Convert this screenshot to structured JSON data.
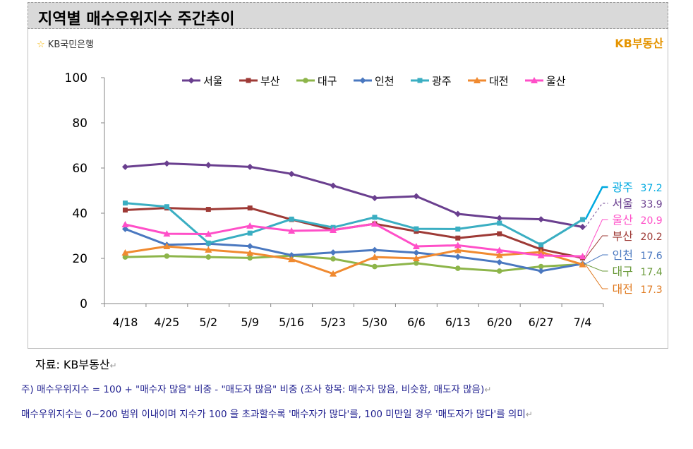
{
  "header": {
    "title": "지역별 매수우위지수 주간추이"
  },
  "logos": {
    "left_brand": "KB국민은행",
    "left_symbol": "☆",
    "right_brand": "KB부동산"
  },
  "footer": {
    "source": "자료: KB부동산",
    "note1": "주) 매수우위지수 = 100 + \"매수자 많음\" 비중 - \"매도자 많음\" 비중  (조사 항목: 매수자 많음, 비슷함, 매도자 많음)",
    "note2": "매수우위지수는 0~200 범위 이내이며 지수가 100 을 초과할수록 '매수자가 많다'를, 100 미만일 경우 '매도자가 많다'를 의미"
  },
  "chart_data": {
    "type": "line",
    "title": "지역별 매수우위지수 주간추이",
    "xlabel": "",
    "ylabel": "",
    "categories": [
      "4/18",
      "4/25",
      "5/2",
      "5/9",
      "5/16",
      "5/23",
      "5/30",
      "6/6",
      "6/13",
      "6/20",
      "6/27",
      "7/4"
    ],
    "ylim": [
      0,
      100
    ],
    "yticks": [
      0,
      20,
      40,
      60,
      80,
      100
    ],
    "legend_position": "top",
    "grid": false,
    "series": [
      {
        "name": "서울",
        "color": "#6a3f8f",
        "marker": "diamond",
        "values": [
          60.5,
          62.0,
          61.3,
          60.5,
          57.4,
          52.2,
          46.7,
          47.5,
          39.7,
          37.8,
          37.3,
          33.9
        ]
      },
      {
        "name": "부산",
        "color": "#9e3a36",
        "marker": "square",
        "values": [
          41.4,
          42.3,
          41.7,
          42.3,
          37.2,
          32.6,
          35.3,
          32.0,
          29.0,
          30.9,
          24.0,
          20.2
        ]
      },
      {
        "name": "대구",
        "color": "#8db54a",
        "marker": "circle",
        "values": [
          20.6,
          21.0,
          20.6,
          20.2,
          21.2,
          19.8,
          16.4,
          17.9,
          15.6,
          14.4,
          16.4,
          17.4
        ]
      },
      {
        "name": "인천",
        "color": "#4a78c0",
        "marker": "diamond",
        "values": [
          33.0,
          26.0,
          26.5,
          25.4,
          21.4,
          22.6,
          23.7,
          22.5,
          20.7,
          18.3,
          14.4,
          17.6
        ]
      },
      {
        "name": "광주",
        "color": "#3aaec2",
        "marker": "square",
        "values": [
          44.5,
          42.9,
          26.8,
          31.2,
          37.4,
          33.7,
          38.2,
          33.1,
          33.0,
          35.6,
          26.0,
          37.2
        ]
      },
      {
        "name": "대전",
        "color": "#f08a30",
        "marker": "triangle",
        "values": [
          22.5,
          25.3,
          23.8,
          22.4,
          19.6,
          13.2,
          20.6,
          20.0,
          23.6,
          21.4,
          22.8,
          17.3
        ]
      },
      {
        "name": "울산",
        "color": "#ff4fc8",
        "marker": "triangle",
        "values": [
          35.0,
          30.9,
          30.8,
          34.4,
          32.2,
          32.5,
          35.3,
          25.3,
          25.8,
          23.6,
          21.3,
          20.9
        ]
      }
    ],
    "end_labels": [
      {
        "name": "광주",
        "value": "37.2",
        "color": "#00a9e0"
      },
      {
        "name": "서울",
        "value": "33.9",
        "color": "#6a3f8f"
      },
      {
        "name": "울산",
        "value": "20.9",
        "color": "#ff4fc8"
      },
      {
        "name": "부산",
        "value": "20.2",
        "color": "#9e3a36"
      },
      {
        "name": "인천",
        "value": "17.6",
        "color": "#4a78c0"
      },
      {
        "name": "대구",
        "value": "17.4",
        "color": "#6a9a3a"
      },
      {
        "name": "대전",
        "value": "17.3",
        "color": "#e07a20"
      }
    ]
  }
}
